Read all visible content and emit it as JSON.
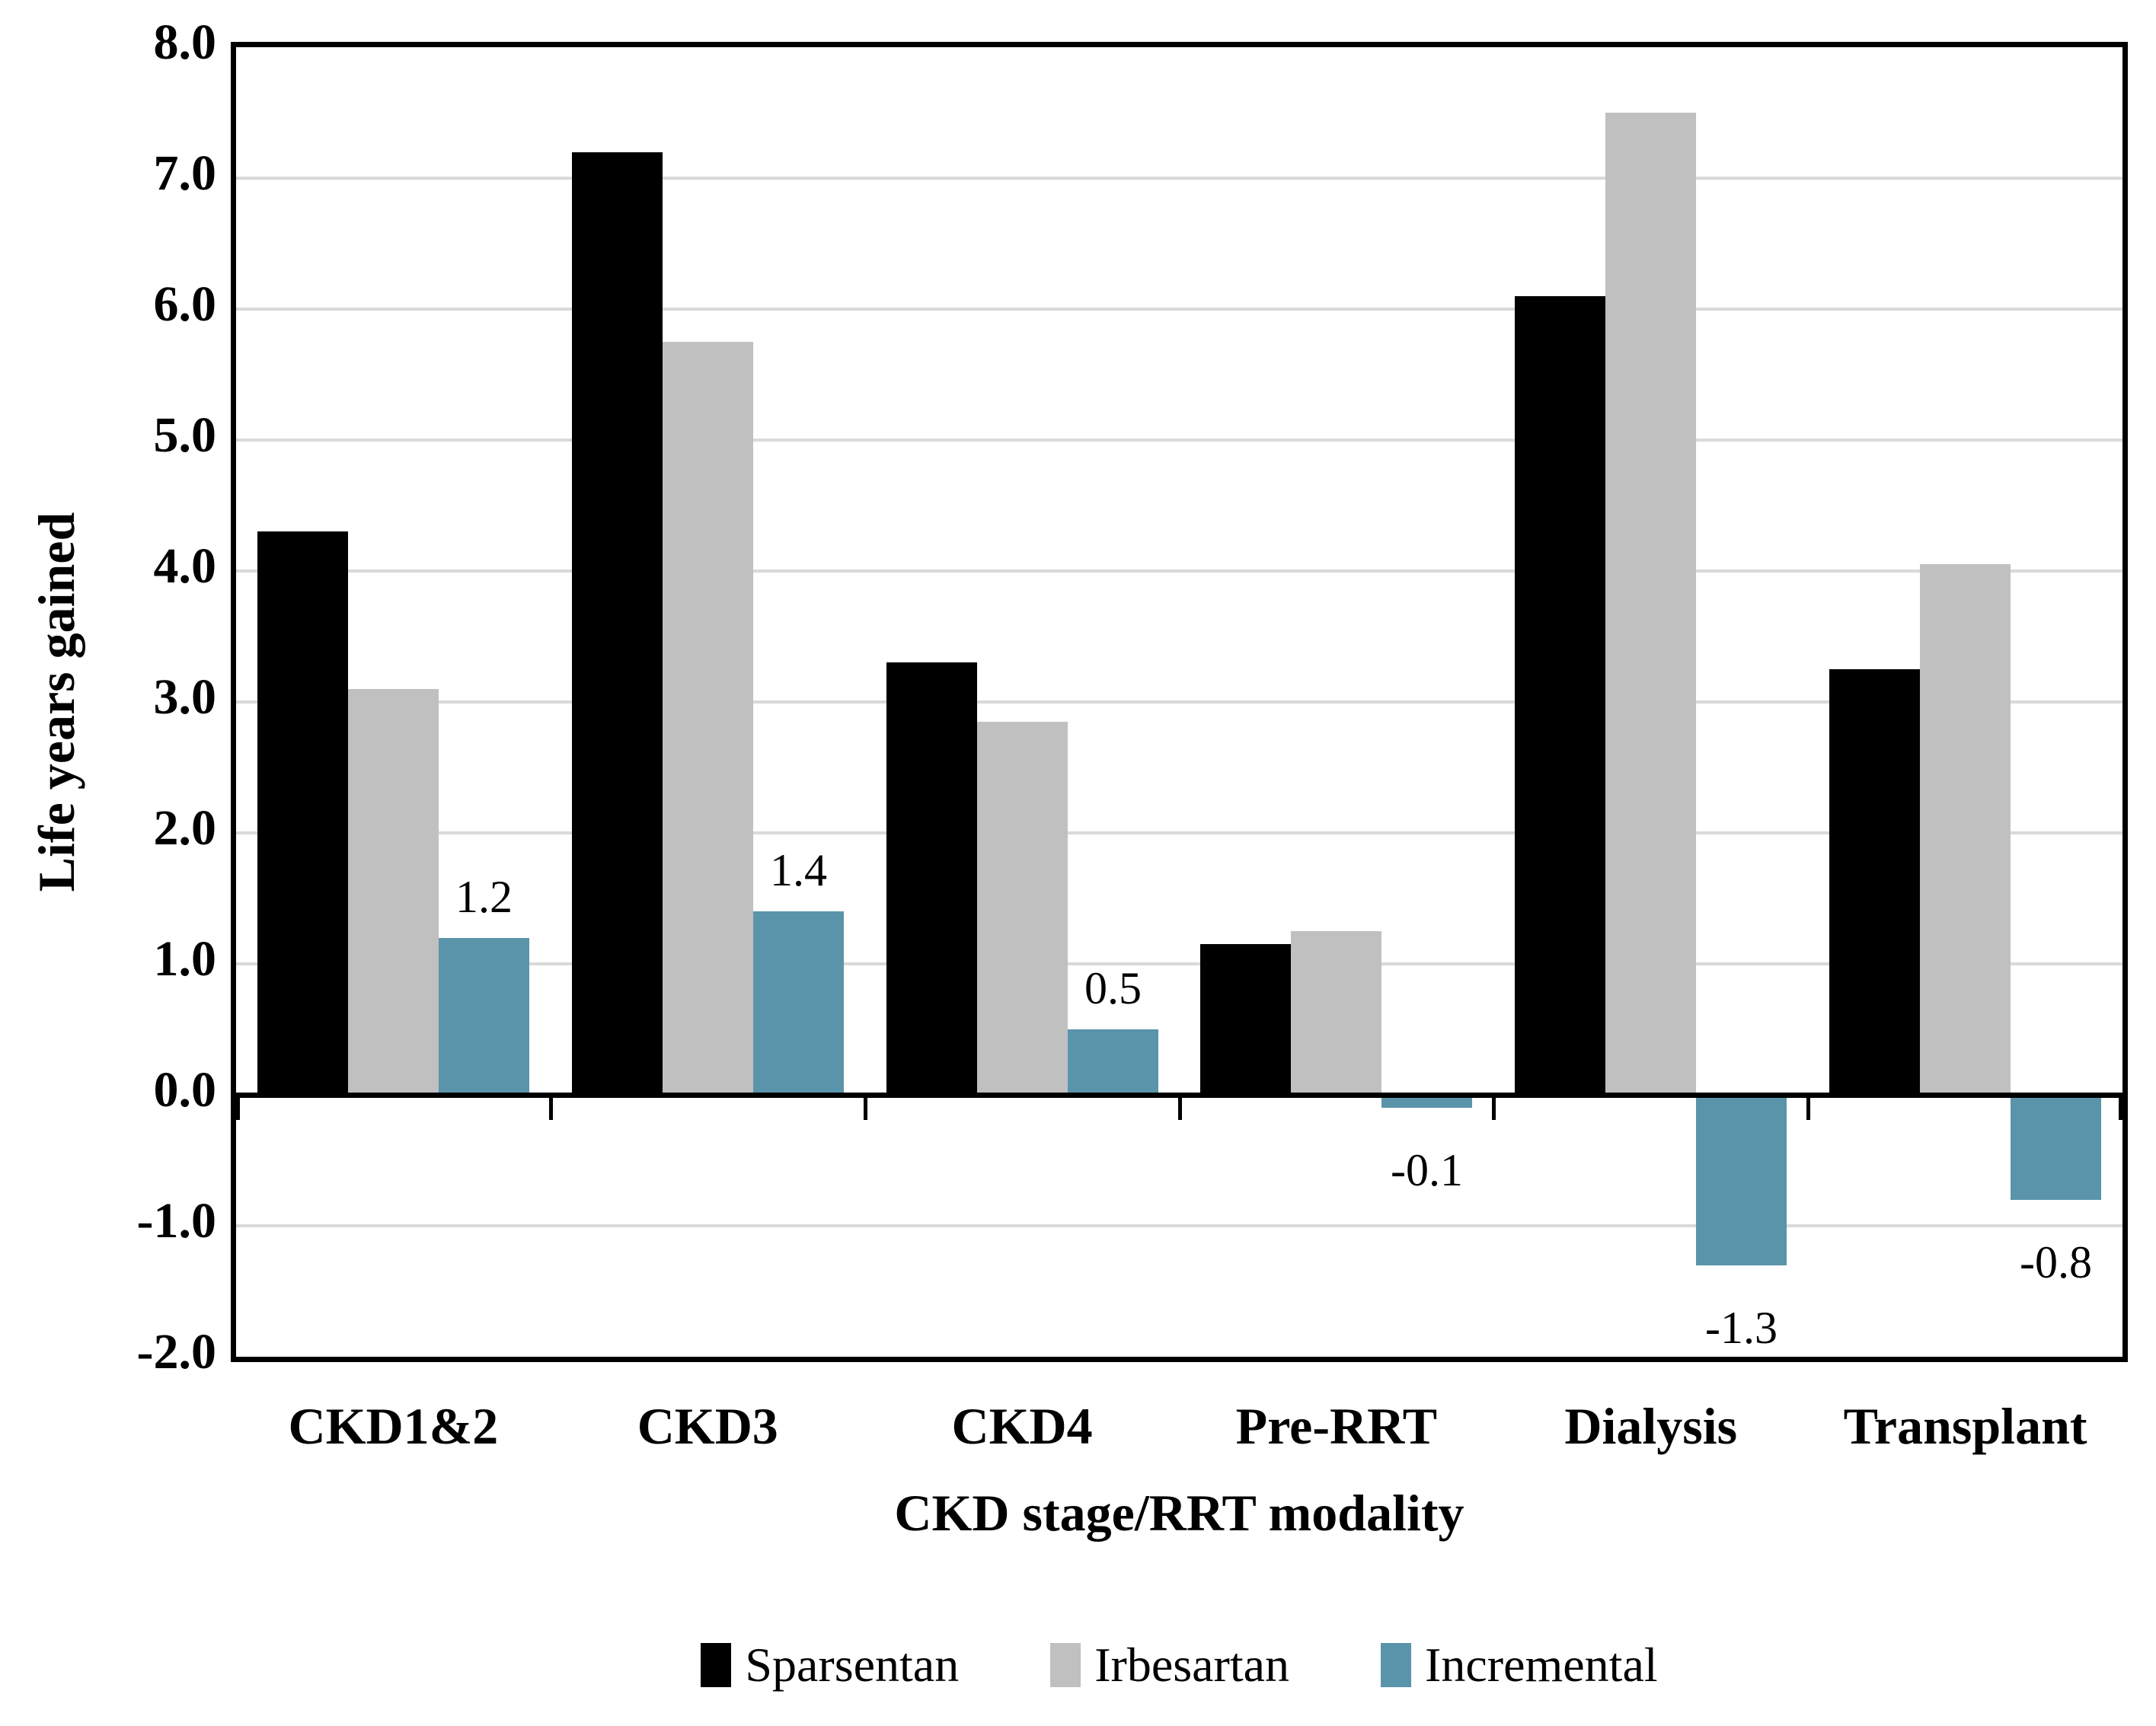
{
  "chart_data": {
    "type": "bar",
    "title": "",
    "xlabel": "CKD stage/RRT modality",
    "ylabel": "Life years gained",
    "categories": [
      "CKD1&2",
      "CKD3",
      "CKD4",
      "Pre-RRT",
      "Dialysis",
      "Transplant"
    ],
    "series": [
      {
        "name": "Sparsentan",
        "color": "#000000",
        "values": [
          4.3,
          7.2,
          3.3,
          1.15,
          6.1,
          3.25
        ]
      },
      {
        "name": "Irbesartan",
        "color": "#C0C0C0",
        "values": [
          3.1,
          5.75,
          2.85,
          1.25,
          7.5,
          4.05
        ]
      },
      {
        "name": "Incremental",
        "color": "#5A94AA",
        "values": [
          1.2,
          1.4,
          0.5,
          -0.1,
          -1.3,
          -0.8
        ],
        "labels": [
          "1.2",
          "1.4",
          "0.5",
          "-0.1",
          "-1.3",
          "-0.8"
        ]
      }
    ],
    "ylim": [
      -2.0,
      8.0
    ],
    "ytick_step": 1.0,
    "yticks": [
      8.0,
      7.0,
      6.0,
      5.0,
      4.0,
      3.0,
      2.0,
      1.0,
      0.0,
      -1.0,
      -2.0
    ],
    "ytick_labels": [
      "8.0",
      "7.0",
      "6.0",
      "5.0",
      "4.0",
      "3.0",
      "2.0",
      "1.0",
      "0.0",
      "-1.0",
      "-2.0"
    ],
    "grid": true,
    "grid_color": "#D9D9D9",
    "axis_color": "#000000",
    "legend_position": "bottom"
  }
}
